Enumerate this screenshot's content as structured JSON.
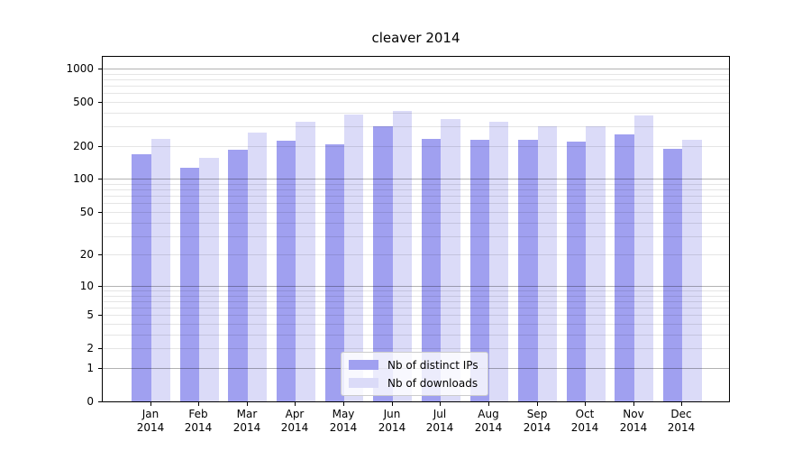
{
  "chart_data": {
    "type": "bar",
    "title": "cleaver 2014",
    "categories": [
      "Jan",
      "Feb",
      "Mar",
      "Apr",
      "May",
      "Jun",
      "Jul",
      "Aug",
      "Sep",
      "Oct",
      "Nov",
      "Dec"
    ],
    "category_year": "2014",
    "series": [
      {
        "name": "Nb of distinct IPs",
        "color": "#a0a0f0",
        "values": [
          168,
          127,
          185,
          223,
          206,
          300,
          230,
          227,
          228,
          220,
          255,
          188
        ]
      },
      {
        "name": "Nb of downloads",
        "color": "#dbdbf8",
        "values": [
          233,
          155,
          265,
          332,
          387,
          410,
          352,
          333,
          302,
          300,
          380,
          228
        ]
      }
    ],
    "yscale": "log10(value+1)",
    "yticks": [
      0,
      1,
      2,
      5,
      10,
      20,
      50,
      100,
      200,
      500,
      1000
    ],
    "ylim": [
      0,
      1275
    ],
    "grid": {
      "major": [
        1,
        10,
        100,
        1000
      ],
      "minor": [
        2,
        3,
        4,
        5,
        6,
        7,
        8,
        9,
        20,
        30,
        40,
        50,
        60,
        70,
        80,
        90,
        200,
        300,
        400,
        500,
        600,
        700,
        800,
        900
      ]
    },
    "legend_position": "lower center",
    "grid_major_color": "#b3b3b3",
    "grid_minor_color": "#e8e8e8",
    "axis_color": "#000000",
    "background_color": "#ffffff"
  }
}
